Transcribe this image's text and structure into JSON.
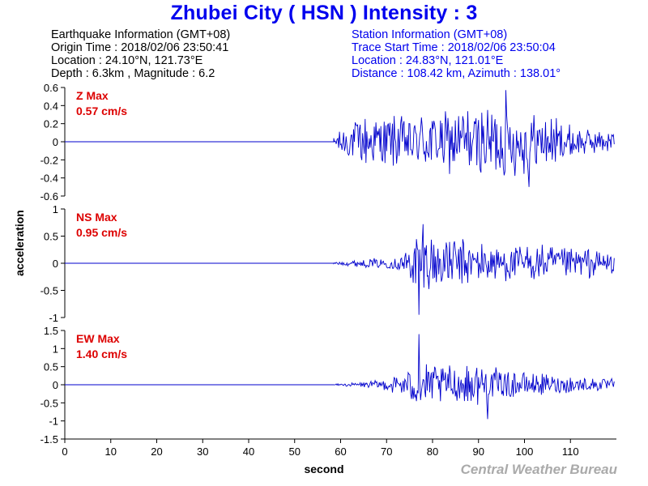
{
  "title": "Zhubei City  ( HSN )  Intensity : 3",
  "earthquake_info": {
    "heading": "Earthquake Information  (GMT+08)",
    "origin_time": "Origin Time : 2018/02/06 23:50:41",
    "location": "Location : 24.10°N, 121.73°E",
    "depth_magnitude": "Depth : 6.3km , Magnitude : 6.2"
  },
  "station_info": {
    "heading": "Station Information  (GMT+08)",
    "trace_start": "Trace Start Time : 2018/02/06 23:50:04",
    "location": "Location : 24.83°N, 121.01°E",
    "distance_azimuth": "Distance : 108.42 km, Azimuth : 138.01°"
  },
  "footer": "Central Weather Bureau",
  "colors": {
    "title": "#0000ee",
    "station_text": "#0000ee",
    "trace": "#0000cc",
    "max_label": "#dd0000",
    "footer": "#aaaaaa"
  },
  "chart_data": {
    "type": "line",
    "xlabel": "second",
    "ylabel": "acceleration",
    "xlim": [
      0,
      120
    ],
    "xticks": [
      0,
      10,
      20,
      30,
      40,
      50,
      60,
      70,
      80,
      90,
      100,
      110
    ],
    "grid": false,
    "panels": [
      {
        "name": "Z",
        "max_label": "Z Max",
        "max_value": "0.57 cm/s",
        "ylim": [
          -0.6,
          0.6
        ],
        "yticks": [
          0.6,
          0.4,
          0.2,
          0,
          -0.2,
          -0.4,
          -0.6
        ],
        "ytick_labels": [
          "0.6",
          "0.4",
          "0.2",
          "0",
          "-0.2",
          "-0.4",
          "-0.6"
        ],
        "onset": 58.5,
        "onset_amp": 0.22,
        "peak_time": 96,
        "peak_amp": 0.57,
        "trough_time": 101,
        "trough_amp": -0.5,
        "env": [
          [
            58.5,
            0.05
          ],
          [
            60,
            0.22
          ],
          [
            65,
            0.3
          ],
          [
            70,
            0.32
          ],
          [
            76,
            0.32
          ],
          [
            80,
            0.38
          ],
          [
            85,
            0.38
          ],
          [
            90,
            0.4
          ],
          [
            95,
            0.43
          ],
          [
            100,
            0.38
          ],
          [
            105,
            0.32
          ],
          [
            110,
            0.2
          ],
          [
            115,
            0.14
          ],
          [
            119.5,
            0.12
          ]
        ]
      },
      {
        "name": "NS",
        "max_label": "NS Max",
        "max_value": "0.95 cm/s",
        "ylim": [
          -1,
          1
        ],
        "yticks": [
          1,
          0.5,
          0,
          -0.5,
          -1
        ],
        "ytick_labels": [
          "1",
          "0.5",
          "0",
          "-0.5",
          "-1"
        ],
        "onset": 58.5,
        "onset_amp": 0.04,
        "peak_time": 77,
        "peak_amp": -0.95,
        "trough_time": 78,
        "trough_amp": 0.72,
        "env": [
          [
            58.5,
            0.02
          ],
          [
            62,
            0.06
          ],
          [
            68,
            0.1
          ],
          [
            72,
            0.12
          ],
          [
            75,
            0.35
          ],
          [
            77,
            0.72
          ],
          [
            80,
            0.6
          ],
          [
            85,
            0.5
          ],
          [
            90,
            0.4
          ],
          [
            95,
            0.35
          ],
          [
            100,
            0.38
          ],
          [
            105,
            0.35
          ],
          [
            110,
            0.3
          ],
          [
            115,
            0.3
          ],
          [
            119.5,
            0.18
          ]
        ]
      },
      {
        "name": "EW",
        "max_label": "EW Max",
        "max_value": "1.40 cm/s",
        "ylim": [
          -1.5,
          1.5
        ],
        "yticks": [
          1.5,
          1,
          0.5,
          0,
          -0.5,
          -1,
          -1.5
        ],
        "ytick_labels": [
          "1.5",
          "1",
          "0.5",
          "0",
          "-0.5",
          "-1",
          "-1.5"
        ],
        "onset": 58.5,
        "onset_amp": 0.04,
        "peak_time": 77,
        "peak_amp": 1.4,
        "trough_time": 92,
        "trough_amp": -0.95,
        "env": [
          [
            58.5,
            0.02
          ],
          [
            65,
            0.08
          ],
          [
            70,
            0.18
          ],
          [
            74,
            0.4
          ],
          [
            77,
            0.7
          ],
          [
            80,
            0.6
          ],
          [
            85,
            0.55
          ],
          [
            90,
            0.6
          ],
          [
            95,
            0.45
          ],
          [
            100,
            0.35
          ],
          [
            105,
            0.3
          ],
          [
            110,
            0.25
          ],
          [
            115,
            0.2
          ],
          [
            119.5,
            0.18
          ]
        ]
      }
    ]
  }
}
